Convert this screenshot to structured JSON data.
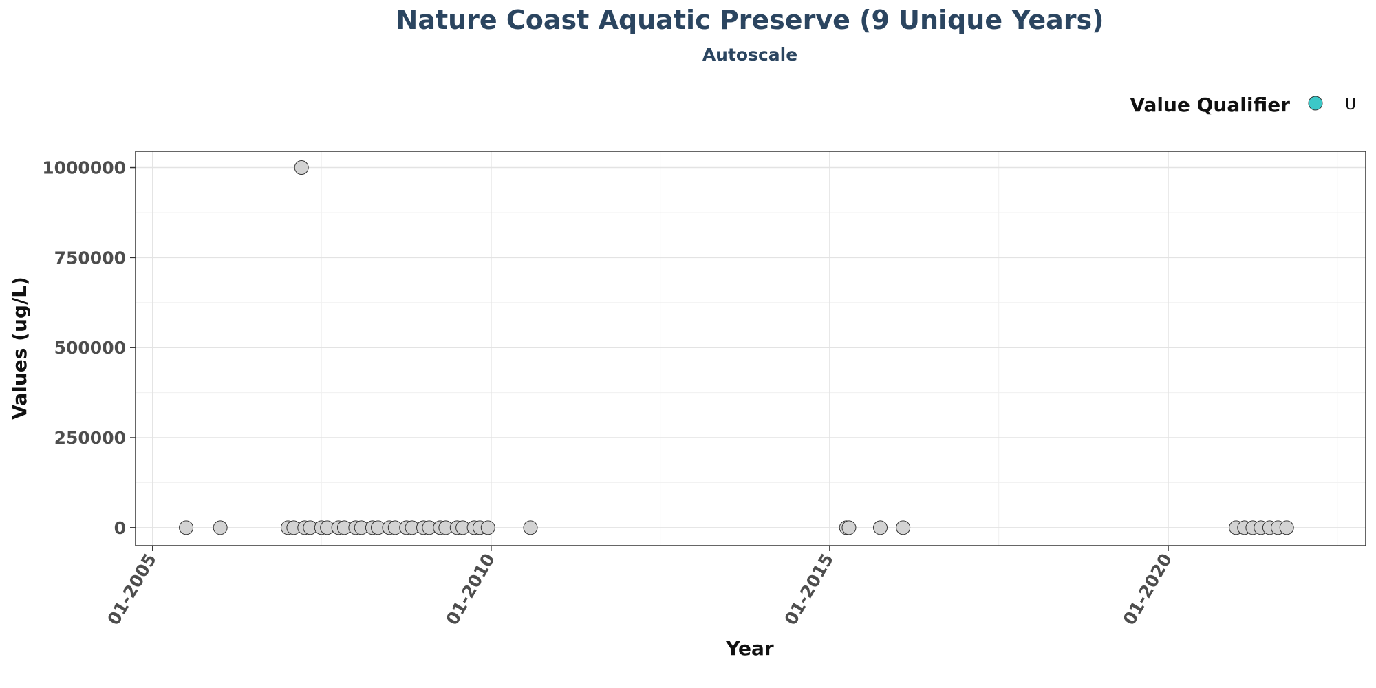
{
  "chart_data": {
    "type": "scatter",
    "title": "Nature Coast Aquatic Preserve (9 Unique Years)",
    "subtitle": "Autoscale",
    "xlabel": "Year",
    "ylabel": "Values (ug/L)",
    "xlim": [
      "2004-10-01",
      "2022-12-01"
    ],
    "ylim": [
      -50000,
      1045000
    ],
    "x_ticks": [
      "01-2005",
      "01-2010",
      "01-2015",
      "01-2020"
    ],
    "x_tick_dates": [
      "2005-01-01",
      "2010-01-01",
      "2015-01-01",
      "2020-01-01"
    ],
    "y_ticks": [
      "0",
      "250000",
      "500000",
      "750000",
      "1000000"
    ],
    "y_tick_values": [
      0,
      250000,
      500000,
      750000,
      1000000
    ],
    "grid": true,
    "legend": {
      "title": "Value Qualifier",
      "placement": "top-right",
      "entries": [
        {
          "label": "U",
          "color": "#3cc8c8"
        }
      ]
    },
    "point_fill": "#d3d3d3",
    "point_stroke": "#333333",
    "series": [
      {
        "points": [
          {
            "x": "2005-07-01",
            "y": 0
          },
          {
            "x": "2006-01-01",
            "y": 0
          },
          {
            "x": "2007-01-01",
            "y": 0
          },
          {
            "x": "2007-02-01",
            "y": 0
          },
          {
            "x": "2007-03-15",
            "y": 1000000
          },
          {
            "x": "2007-04-01",
            "y": 0
          },
          {
            "x": "2007-05-01",
            "y": 0
          },
          {
            "x": "2007-07-01",
            "y": 0
          },
          {
            "x": "2007-08-01",
            "y": 0
          },
          {
            "x": "2007-10-01",
            "y": 0
          },
          {
            "x": "2007-11-01",
            "y": 0
          },
          {
            "x": "2008-01-01",
            "y": 0
          },
          {
            "x": "2008-02-01",
            "y": 0
          },
          {
            "x": "2008-04-01",
            "y": 0
          },
          {
            "x": "2008-05-01",
            "y": 0
          },
          {
            "x": "2008-07-01",
            "y": 0
          },
          {
            "x": "2008-08-01",
            "y": 0
          },
          {
            "x": "2008-10-01",
            "y": 0
          },
          {
            "x": "2008-11-01",
            "y": 0
          },
          {
            "x": "2009-01-01",
            "y": 0
          },
          {
            "x": "2009-02-01",
            "y": 0
          },
          {
            "x": "2009-04-01",
            "y": 0
          },
          {
            "x": "2009-05-01",
            "y": 0
          },
          {
            "x": "2009-07-01",
            "y": 0
          },
          {
            "x": "2009-08-01",
            "y": 0
          },
          {
            "x": "2009-10-01",
            "y": 0
          },
          {
            "x": "2009-11-01",
            "y": 0
          },
          {
            "x": "2009-12-15",
            "y": 0
          },
          {
            "x": "2010-08-01",
            "y": 0
          },
          {
            "x": "2015-04-01",
            "y": 0
          },
          {
            "x": "2015-04-15",
            "y": 0
          },
          {
            "x": "2015-10-01",
            "y": 0
          },
          {
            "x": "2016-02-01",
            "y": 0
          },
          {
            "x": "2021-01-01",
            "y": 0
          },
          {
            "x": "2021-02-15",
            "y": 0
          },
          {
            "x": "2021-04-01",
            "y": 0
          },
          {
            "x": "2021-05-15",
            "y": 0
          },
          {
            "x": "2021-07-01",
            "y": 0
          },
          {
            "x": "2021-08-15",
            "y": 0
          },
          {
            "x": "2021-10-01",
            "y": 0
          }
        ]
      }
    ]
  }
}
